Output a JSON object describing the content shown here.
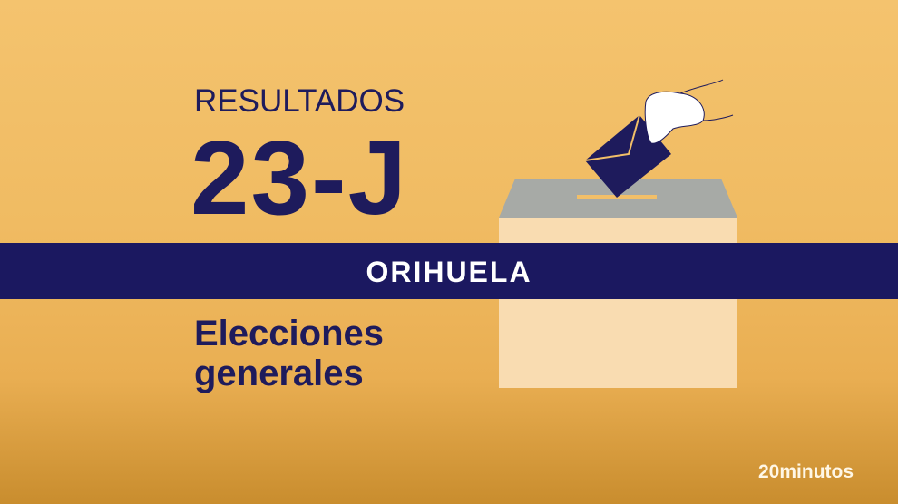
{
  "title_top": "RESULTADOS",
  "title_main": "23-J",
  "banner": "ORIHUELA",
  "subtitle_line1": "Elecciones",
  "subtitle_line2": "generales",
  "logo": "20minutos",
  "colors": {
    "navy": "#1b1860",
    "background": "#f2bf68"
  }
}
